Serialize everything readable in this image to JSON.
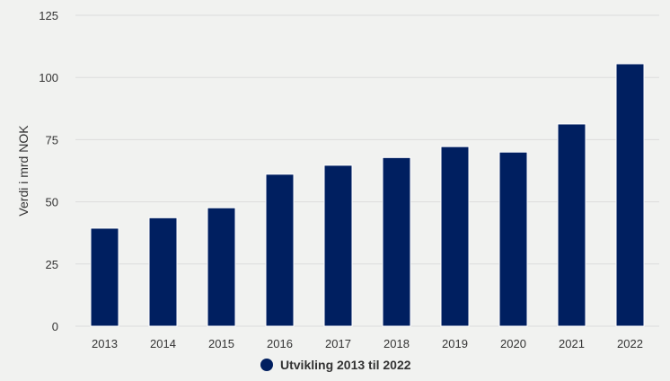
{
  "chart_data": {
    "type": "bar",
    "title": "",
    "xlabel": "",
    "ylabel": "Verdi i mrd NOK",
    "categories": [
      "2013",
      "2014",
      "2015",
      "2016",
      "2017",
      "2018",
      "2019",
      "2020",
      "2021",
      "2022"
    ],
    "series": [
      {
        "name": "Utvikling 2013 til 2022",
        "values": [
          39.4,
          43.6,
          47.6,
          61.1,
          64.7,
          67.8,
          72.2,
          70.0,
          81.3,
          105.5
        ],
        "color": "#001f60"
      }
    ],
    "ylim": [
      0,
      125
    ],
    "yticks": [
      "0",
      "25",
      "50",
      "75",
      "100",
      "125"
    ],
    "grid": true,
    "legend": "bottom"
  }
}
